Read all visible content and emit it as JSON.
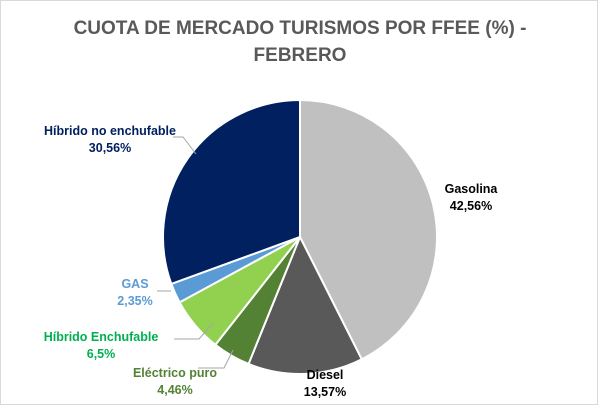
{
  "chart_data": {
    "type": "pie",
    "title_line1": "CUOTA DE MERCADO TURISMOS POR FFEE (%) -",
    "title_line2": "FEBRERO",
    "slices": [
      {
        "label": "Gasolina",
        "value": 42.56,
        "value_text": "42,56%",
        "color": "#c0c0c0",
        "label_color": "#000000"
      },
      {
        "label": "Diesel",
        "value": 13.57,
        "value_text": "13,57%",
        "color": "#595959",
        "label_color": "#000000"
      },
      {
        "label": "Eléctrico puro",
        "value": 4.46,
        "value_text": "4,46%",
        "color": "#548235",
        "label_color": "#548235"
      },
      {
        "label": "Híbrido Enchufable",
        "value": 6.5,
        "value_text": "6,5%",
        "color": "#92d050",
        "label_color": "#00b050"
      },
      {
        "label": "GAS",
        "value": 2.35,
        "value_text": "2,35%",
        "color": "#5b9bd5",
        "label_color": "#5b9bd5"
      },
      {
        "label": "Híbrido no enchufable",
        "value": 30.56,
        "value_text": "30,56%",
        "color": "#002060",
        "label_color": "#002060"
      }
    ]
  }
}
